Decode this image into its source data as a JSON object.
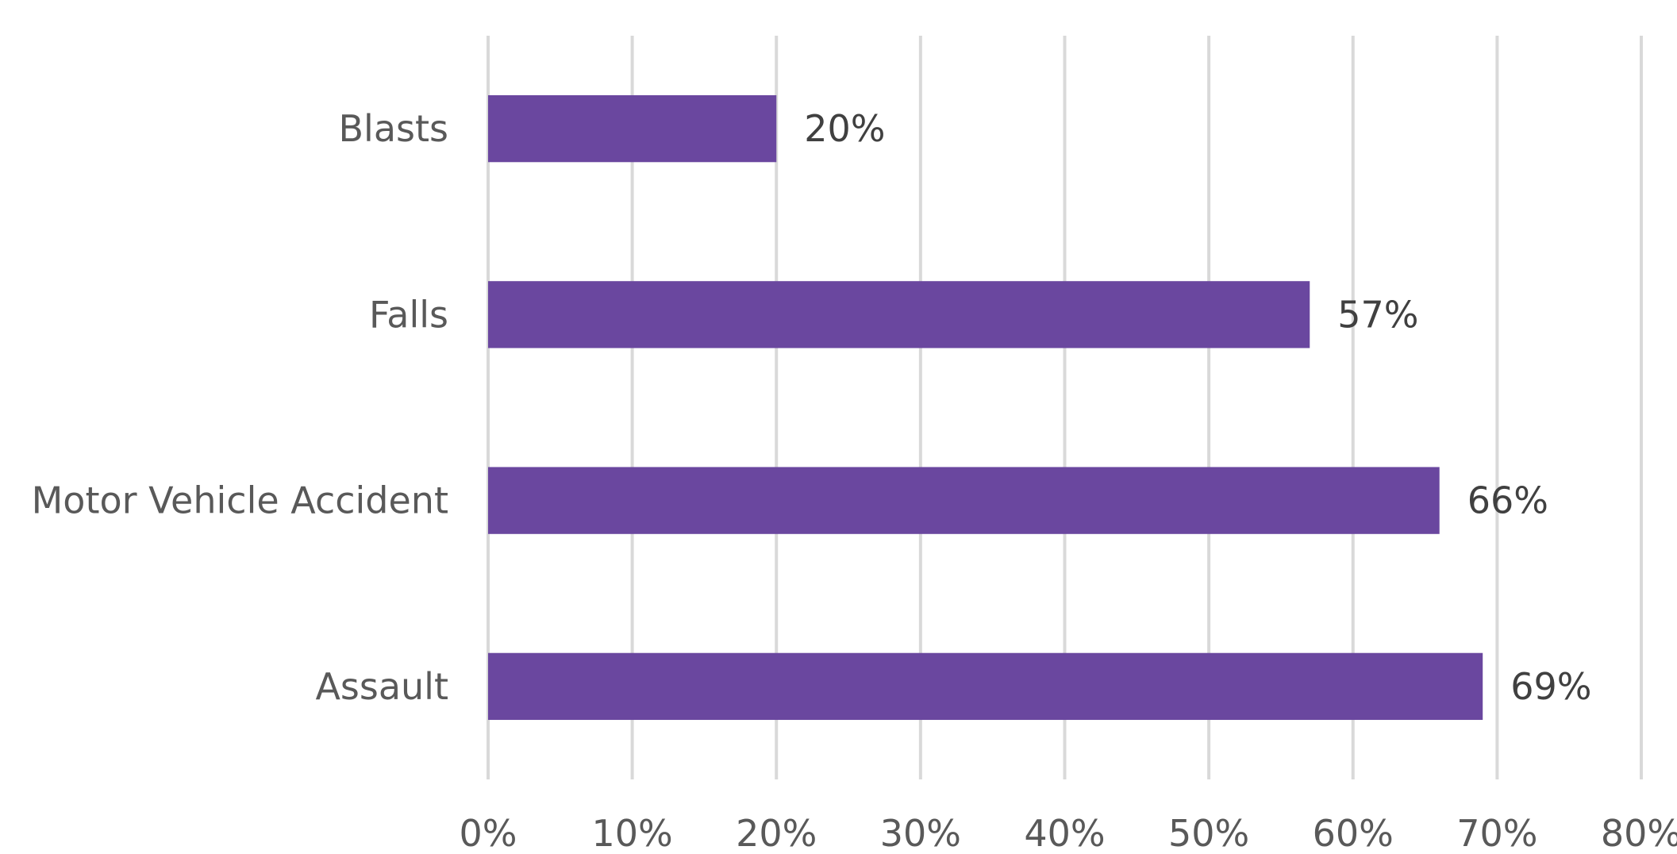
{
  "chart_data": {
    "type": "bar",
    "orientation": "horizontal",
    "title": "",
    "xlabel": "",
    "ylabel": "",
    "categories": [
      "Blasts",
      "Falls",
      "Motor Vehicle Accident",
      "Assault"
    ],
    "values": [
      20,
      57,
      66,
      69
    ],
    "data_labels": [
      "20%",
      "57%",
      "66%",
      "69%"
    ],
    "xlim": [
      0,
      80
    ],
    "x_ticks": [
      0,
      10,
      20,
      30,
      40,
      50,
      60,
      70,
      80
    ],
    "x_tick_labels": [
      "0%",
      "10%",
      "20%",
      "30%",
      "40%",
      "50%",
      "60%",
      "70%",
      "80%"
    ],
    "grid": "vertical",
    "legend": "none",
    "bar_color": "#6a479f"
  }
}
